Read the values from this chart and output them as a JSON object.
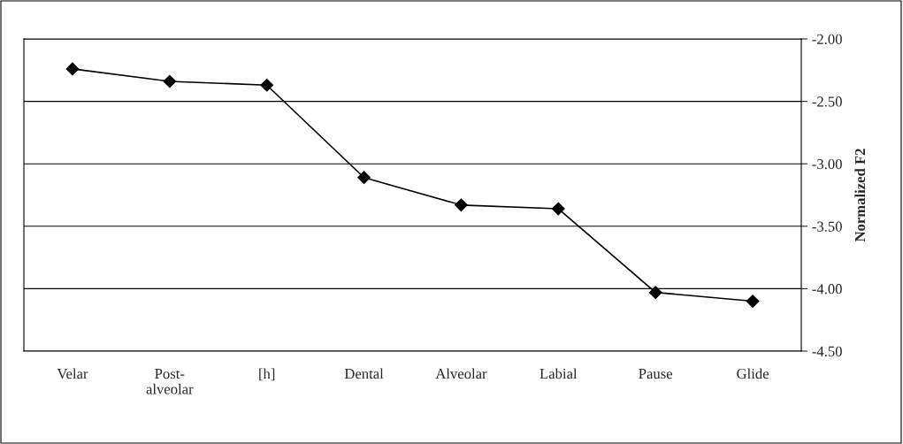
{
  "chart_data": {
    "type": "line",
    "ylabel": "Normalized F2",
    "categories": [
      "Velar",
      "Post-\nalveolar",
      "[h]",
      "Dental",
      "Alveolar",
      "Labial",
      "Pause",
      "Glide"
    ],
    "series": [
      {
        "color": "#000000",
        "values": [
          -2.24,
          -2.34,
          -2.37,
          -3.11,
          -3.33,
          -3.36,
          -4.03,
          -4.1
        ]
      }
    ],
    "ylim": [
      -4.5,
      -2.0
    ],
    "yticks": [
      {
        "value": -4.5,
        "label": "-4.50"
      },
      {
        "value": -4.0,
        "label": "-4.00"
      },
      {
        "value": -3.5,
        "label": "-3.50"
      },
      {
        "value": -3.0,
        "label": "-3.00"
      },
      {
        "value": -2.5,
        "label": "-2.50"
      },
      {
        "value": -2.0,
        "label": "-2.00"
      }
    ],
    "grid": "y",
    "marker": "diamond",
    "line_style": "solid",
    "legend": false
  }
}
